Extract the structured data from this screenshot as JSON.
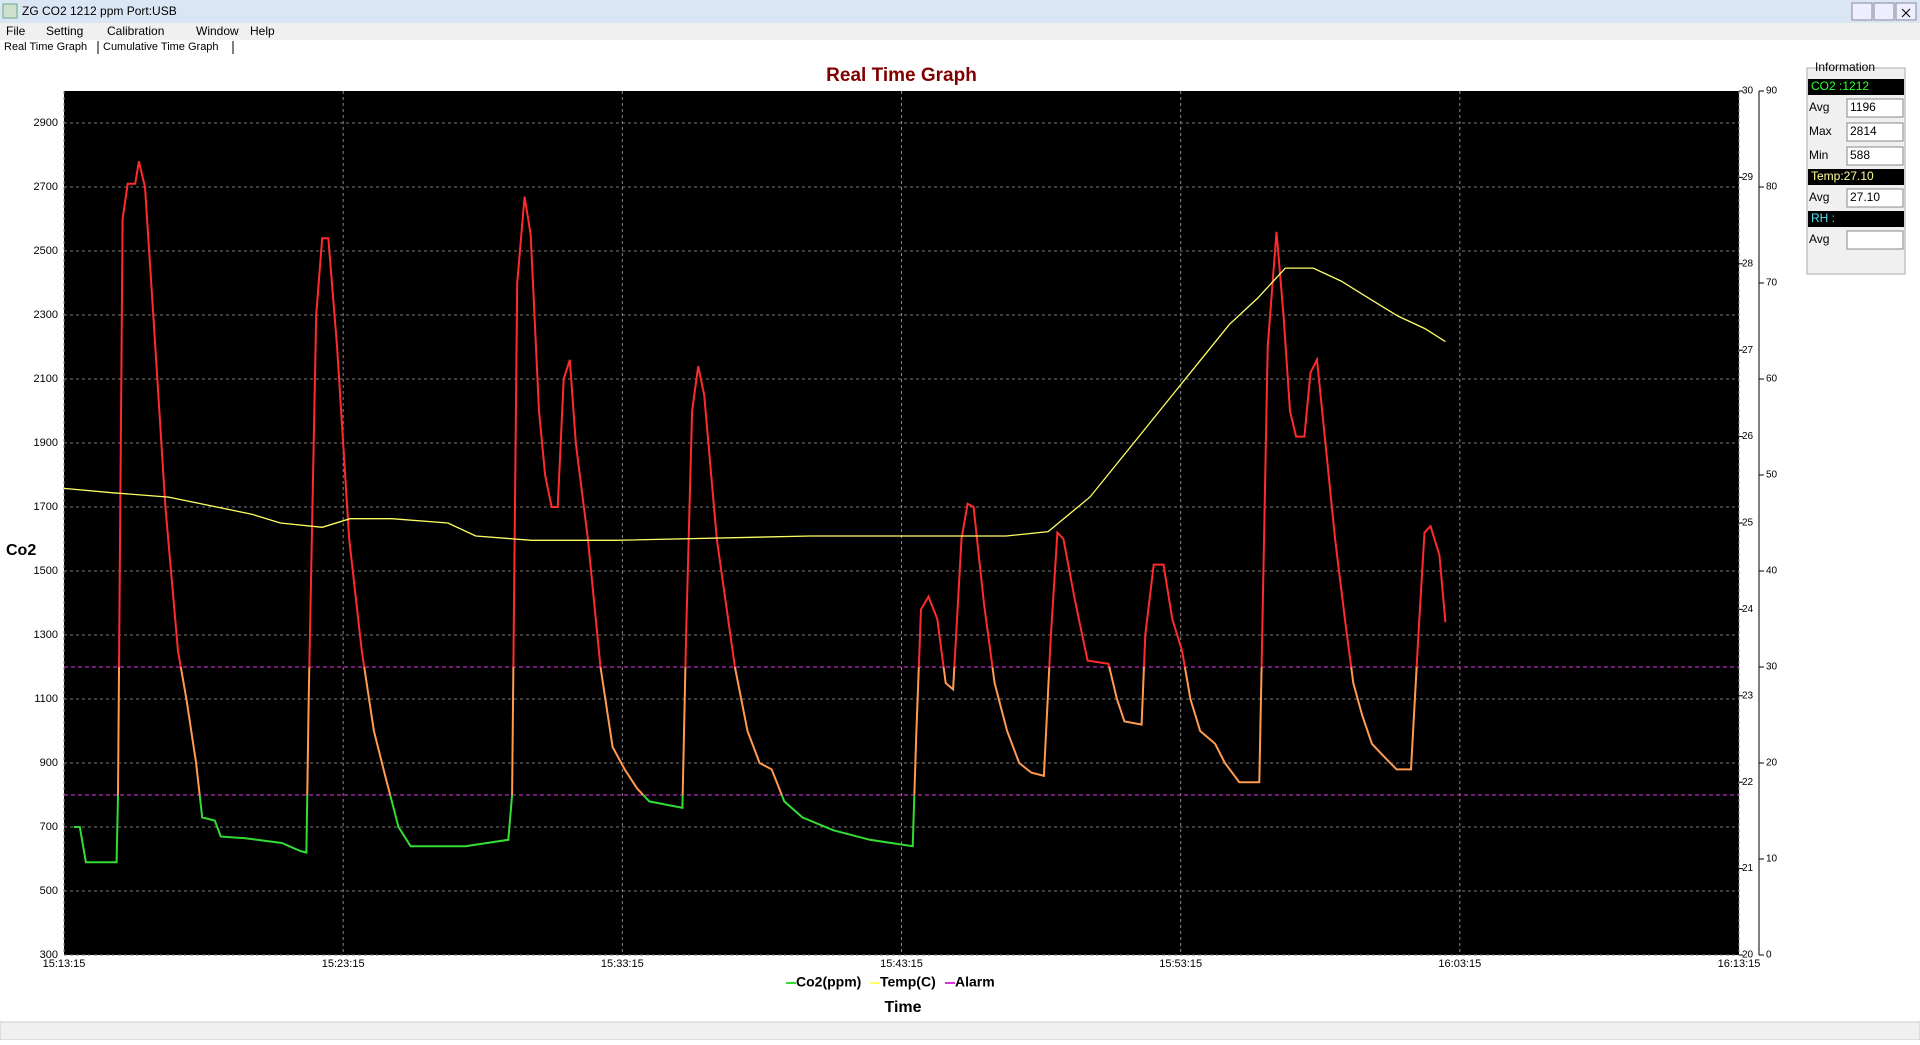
{
  "window": {
    "title": "ZG CO2 1212 ppm  Port:USB",
    "menu": [
      "File",
      "Setting",
      "Calibration",
      "Window",
      "Help"
    ],
    "tabs": [
      "Real Time Graph",
      "Cumulative Time Graph"
    ]
  },
  "chart_data": {
    "type": "line",
    "title": "Real Time Graph",
    "x_label": "Time",
    "y_label": "Co2",
    "xlim": [
      "15:13:15",
      "16:13:15"
    ],
    "xticks": [
      "15:13:15",
      "15:23:15",
      "15:33:15",
      "15:43:15",
      "15:53:15",
      "16:03:15",
      "16:13:15"
    ],
    "ylim": [
      300,
      3000
    ],
    "yticks": [
      300,
      500,
      700,
      900,
      1100,
      1300,
      1500,
      1700,
      1900,
      2100,
      2300,
      2500,
      2700,
      2900
    ],
    "y2lim": [
      20,
      30
    ],
    "y2ticks": [
      20,
      21,
      22,
      23,
      24,
      25,
      26,
      27,
      28,
      29,
      30
    ],
    "y3lim": [
      0,
      90
    ],
    "y3ticks": [
      0,
      10,
      20,
      30,
      40,
      50,
      60,
      70,
      80,
      90
    ],
    "grid": true,
    "background": "#000000",
    "series": [
      {
        "name": "Co2(ppm)",
        "color": "#33dd33",
        "band_colors": [
          "#33dd33",
          "#ff9a50",
          "#ff2a2a"
        ],
        "x": [
          "15:13:36",
          "15:13:49",
          "15:14:02",
          "15:15:08",
          "15:15:11",
          "15:15:21",
          "15:15:32",
          "15:15:48",
          "15:15:56",
          "15:16:09",
          "15:16:27",
          "15:16:53",
          "15:17:20",
          "15:17:38",
          "15:17:59",
          "15:18:12",
          "15:18:39",
          "15:18:52",
          "15:19:45",
          "15:21:03",
          "15:21:43",
          "15:21:56",
          "15:22:01",
          "15:22:17",
          "15:22:30",
          "15:22:43",
          "15:23:02",
          "15:23:28",
          "15:23:55",
          "15:24:21",
          "15:24:47",
          "15:25:14",
          "15:25:40",
          "15:27:38",
          "15:29:10",
          "15:29:18",
          "15:29:29",
          "15:29:45",
          "15:29:58",
          "15:30:16",
          "15:30:29",
          "15:30:43",
          "15:30:56",
          "15:31:09",
          "15:31:22",
          "15:31:35",
          "15:32:01",
          "15:32:28",
          "15:32:54",
          "15:33:20",
          "15:33:47",
          "15:34:13",
          "15:35:24",
          "15:35:32",
          "15:35:45",
          "15:35:58",
          "15:36:11",
          "15:36:38",
          "15:37:17",
          "15:37:44",
          "15:38:10",
          "15:38:36",
          "15:39:03",
          "15:39:42",
          "15:40:48",
          "15:42:07",
          "15:43:39",
          "15:43:47",
          "15:43:57",
          "15:44:13",
          "15:44:32",
          "15:44:50",
          "15:45:06",
          "15:45:24",
          "15:45:37",
          "15:45:50",
          "15:46:12",
          "15:46:35",
          "15:47:02",
          "15:47:28",
          "15:47:54",
          "15:48:21",
          "15:48:36",
          "15:48:50",
          "15:49:03",
          "15:49:29",
          "15:49:55",
          "15:50:40",
          "15:50:58",
          "15:51:14",
          "15:51:51",
          "15:51:59",
          "15:52:17",
          "15:52:38",
          "15:52:57",
          "15:53:18",
          "15:53:36",
          "15:53:57",
          "15:54:29",
          "15:54:50",
          "15:55:21",
          "15:56:04",
          "15:56:09",
          "15:56:22",
          "15:56:41",
          "15:56:56",
          "15:57:10",
          "15:57:23",
          "15:57:41",
          "15:57:54",
          "15:58:08",
          "15:58:26",
          "15:58:47",
          "15:59:08",
          "15:59:26",
          "15:59:45",
          "16:00:06",
          "16:00:32",
          "16:00:59",
          "16:01:30",
          "16:01:46",
          "16:01:59",
          "16:02:12",
          "16:02:31",
          "16:02:44"
        ],
        "values": [
          700,
          700,
          590,
          590,
          800,
          2600,
          2710,
          2710,
          2780,
          2700,
          2300,
          1700,
          1250,
          1100,
          900,
          730,
          720,
          670,
          665,
          650,
          625,
          620,
          1100,
          2300,
          2540,
          2540,
          2200,
          1600,
          1250,
          1000,
          850,
          700,
          640,
          640,
          660,
          800,
          2400,
          2670,
          2550,
          2000,
          1800,
          1700,
          1700,
          2100,
          2160,
          1900,
          1600,
          1200,
          950,
          880,
          820,
          780,
          760,
          1300,
          2000,
          2140,
          2050,
          1600,
          1200,
          1000,
          900,
          880,
          780,
          730,
          690,
          660,
          640,
          1000,
          1380,
          1420,
          1350,
          1150,
          1130,
          1600,
          1710,
          1700,
          1400,
          1150,
          1000,
          900,
          870,
          860,
          1300,
          1620,
          1600,
          1400,
          1220,
          1210,
          1100,
          1030,
          1020,
          1300,
          1520,
          1520,
          1350,
          1250,
          1100,
          1000,
          960,
          900,
          840,
          840,
          1200,
          2200,
          2560,
          2300,
          2000,
          1920,
          1920,
          2120,
          2160,
          1900,
          1600,
          1350,
          1150,
          1050,
          960,
          920,
          880,
          880,
          1300,
          1620,
          1640,
          1550,
          1340
        ]
      },
      {
        "name": "Temp(C)",
        "color": "#ffff66",
        "axis": "y2",
        "x": [
          "15:13:15",
          "15:15:00",
          "15:17:00",
          "15:18:30",
          "15:20:00",
          "15:21:00",
          "15:22:30",
          "15:23:30",
          "15:25:00",
          "15:27:00",
          "15:28:00",
          "15:30:00",
          "15:33:00",
          "15:40:00",
          "15:47:00",
          "15:48:30",
          "15:50:00",
          "15:51:00",
          "15:52:00",
          "15:53:00",
          "15:54:00",
          "15:55:00",
          "15:56:00",
          "15:57:00",
          "15:58:00",
          "15:59:00",
          "16:00:00",
          "16:01:00",
          "16:02:00",
          "16:02:44"
        ],
        "values": [
          25.4,
          25.35,
          25.3,
          25.2,
          25.1,
          25.0,
          24.95,
          25.05,
          25.05,
          25.0,
          24.85,
          24.8,
          24.8,
          24.85,
          24.85,
          24.9,
          25.3,
          25.7,
          26.1,
          26.5,
          26.9,
          27.3,
          27.6,
          27.95,
          27.95,
          27.8,
          27.6,
          27.4,
          27.25,
          27.1
        ]
      },
      {
        "name": "Alarm",
        "color": "#dd33dd",
        "values": [
          800,
          1200
        ]
      }
    ]
  },
  "info": {
    "title": "Information",
    "co2": "CO2 :1212",
    "co2_rows": [
      [
        "Avg",
        "1196"
      ],
      [
        "Max",
        "2814"
      ],
      [
        "Min",
        "588"
      ]
    ],
    "temp": "Temp:27.10",
    "temp_rows": [
      [
        "Avg",
        "27.10"
      ]
    ],
    "rh": "RH  :",
    "rh_rows": [
      [
        "Avg"
      ]
    ]
  }
}
